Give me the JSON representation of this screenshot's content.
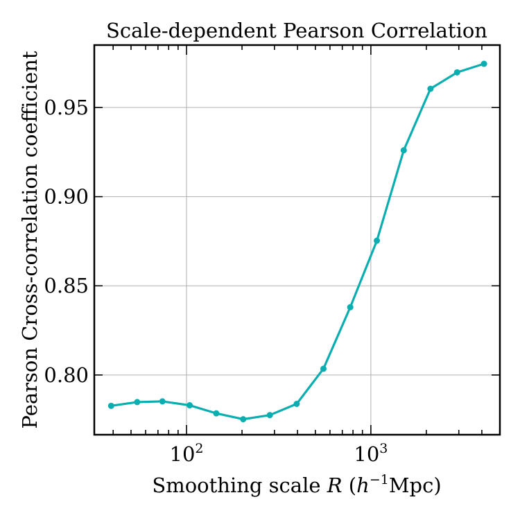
{
  "chart_data": {
    "type": "line",
    "title": "Scale-dependent Pearson Correlation",
    "xlabel": "Smoothing scale",
    "xlabel_var": "R",
    "xlabel_unit_open": " (",
    "xlabel_unit_base": "h",
    "xlabel_unit_exp": "−1",
    "xlabel_unit_rest": "Mpc)",
    "ylabel": "Pearson Cross-correlation coefficient",
    "xscale": "log",
    "xlim": [
      31.6,
      5012
    ],
    "ylim": [
      0.7665,
      0.985
    ],
    "yticks": [
      0.8,
      0.85,
      0.9,
      0.95
    ],
    "ytick_labels": [
      "0.80",
      "0.85",
      "0.90",
      "0.95"
    ],
    "xticks_major": [
      100,
      1000
    ],
    "xtick_labels": [
      {
        "base": "10",
        "exp": "2"
      },
      {
        "base": "10",
        "exp": "3"
      }
    ],
    "grid": true,
    "color": "#0aaeb0",
    "series": [
      {
        "name": "Pearson correlation",
        "x": [
          39,
          54,
          74,
          104,
          145,
          203,
          283,
          396,
          553,
          773,
          1078,
          1508,
          2106,
          2937,
          4110
        ],
        "y": [
          0.7827,
          0.7848,
          0.7852,
          0.783,
          0.7785,
          0.7752,
          0.7775,
          0.7838,
          0.8035,
          0.838,
          0.8753,
          0.926,
          0.9605,
          0.9697,
          0.9745
        ]
      }
    ]
  }
}
